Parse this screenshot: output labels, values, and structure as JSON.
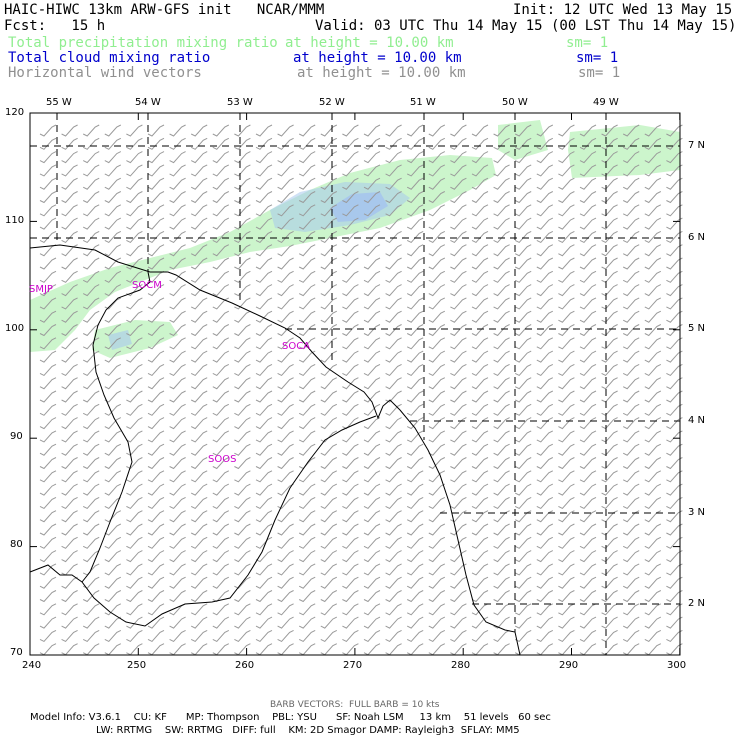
{
  "header": {
    "title": "HAIC-HIWC 13km ARW-GFS init   NCAR/MMM",
    "init": "Init: 12 UTC Wed 13 May 15",
    "fcst": "Fcst:   15 h",
    "valid": "Valid: 03 UTC Thu 14 May 15 (00 LST Thu 14 May 15)"
  },
  "fields": [
    {
      "name": "Total precipitation mixing ratio",
      "height": "at height = 10.00 km",
      "sm": "sm= 1",
      "color": "#90ee90"
    },
    {
      "name": "Total cloud mixing ratio",
      "height": "at height = 10.00 km",
      "sm": "sm= 1",
      "color": "#0000cc"
    },
    {
      "name": "Horizontal wind vectors",
      "height": "at height = 10.00 km",
      "sm": "sm= 1",
      "color": "#909090"
    }
  ],
  "map": {
    "x_ticks": [
      "240",
      "250",
      "260",
      "270",
      "280",
      "290",
      "300"
    ],
    "y_ticks": [
      "120",
      "110",
      "100",
      "90",
      "80",
      "70"
    ],
    "lon_labels": [
      "55 W",
      "54 W",
      "53 W",
      "52 W",
      "51 W",
      "50 W",
      "49 W"
    ],
    "lat_labels": [
      "7 N",
      "6 N",
      "5 N",
      "4 N",
      "3 N",
      "2 N"
    ],
    "stations": [
      "SMJP",
      "SOCM",
      "SOCA",
      "SOOS"
    ],
    "barb_color": "#9a9a9a",
    "precip_color": "#ccf5cc",
    "cloud_color": "#a8c8ec"
  },
  "footer": {
    "barb_note": "BARB VECTORS:  FULL BARB = 10 kts",
    "line1": "Model Info: V3.6.1    CU: KF      MP: Thompson    PBL: YSU      SF: Noah LSM     13 km    51 levels   60 sec",
    "line2": "LW: RRTMG    SW: RRTMG   DIFF: full    KM: 2D Smagor DAMP: Rayleigh3  SFLAY: MM5"
  }
}
